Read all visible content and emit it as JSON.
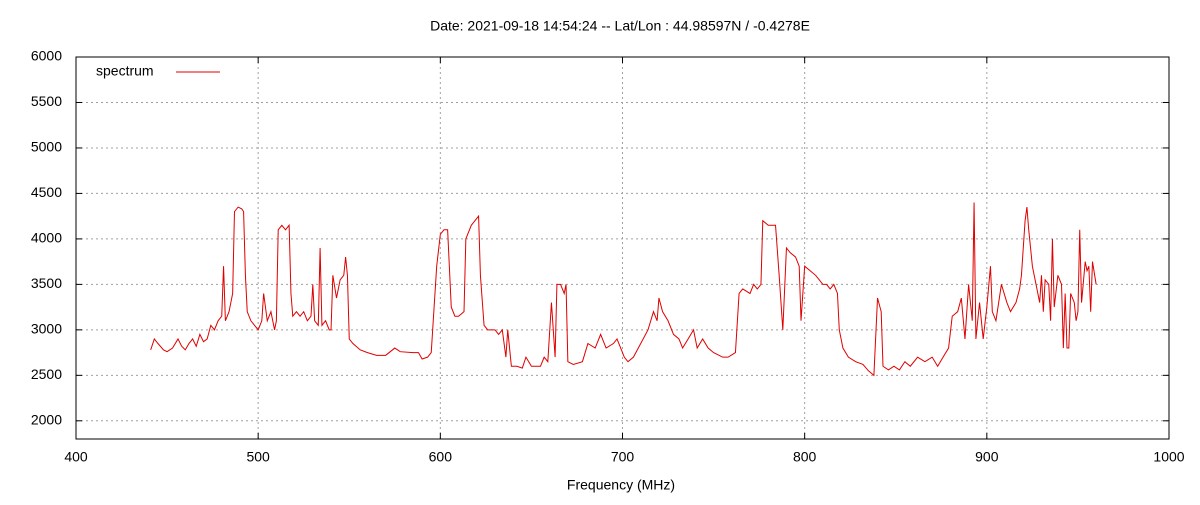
{
  "chart_data": {
    "type": "line",
    "title": "Date: 2021-09-18 14:54:24  --  Lat/Lon : 44.98597N / -0.4278E",
    "x_label": "Frequency (MHz)",
    "xlim": [
      400,
      1000
    ],
    "xticks": [
      400,
      500,
      600,
      700,
      800,
      900,
      1000
    ],
    "ylim": [
      1800,
      6000
    ],
    "yticks": [
      2000,
      2500,
      3000,
      3500,
      4000,
      4500,
      5000,
      5500,
      6000
    ],
    "grid": true,
    "legend": "top-left",
    "series": [
      {
        "name": "spectrum",
        "color": "#e00000",
        "x": [
          441,
          443,
          445,
          448,
          450,
          453,
          456,
          458,
          460,
          462,
          464,
          466,
          468,
          470,
          472,
          474,
          476,
          478,
          480,
          481,
          482,
          484,
          486,
          487,
          489,
          491,
          492,
          493,
          494,
          496,
          498,
          500,
          502,
          503,
          505,
          507,
          509,
          510,
          511,
          513,
          515,
          517,
          518,
          519,
          521,
          523,
          525,
          527,
          529,
          530,
          531,
          533,
          534,
          535,
          537,
          539,
          540,
          541,
          543,
          545,
          547,
          548,
          549,
          550,
          552,
          556,
          560,
          565,
          570,
          575,
          578,
          585,
          588,
          590,
          593,
          595,
          598,
          600,
          602,
          604,
          606,
          608,
          610,
          613,
          614,
          617,
          619,
          621,
          622,
          624,
          626,
          630,
          632,
          634,
          636,
          637,
          639,
          642,
          645,
          647,
          650,
          655,
          657,
          659,
          661,
          663,
          664,
          666,
          668,
          669,
          670,
          673,
          678,
          681,
          685,
          688,
          691,
          695,
          697,
          699,
          701,
          703,
          706,
          710,
          714,
          717,
          719,
          720,
          722,
          725,
          728,
          731,
          733,
          736,
          739,
          741,
          744,
          747,
          750,
          755,
          758,
          762,
          764,
          766,
          770,
          772,
          774,
          776,
          777,
          780,
          784,
          786,
          788,
          790,
          792,
          795,
          797,
          798,
          800,
          803,
          806,
          808,
          810,
          812,
          814,
          816,
          818,
          819,
          821,
          824,
          828,
          832,
          835,
          838,
          840,
          842,
          843,
          846,
          849,
          852,
          855,
          858,
          862,
          866,
          870,
          873,
          876,
          879,
          881,
          884,
          886,
          888,
          890,
          892,
          893,
          894,
          896,
          898,
          900,
          902,
          903,
          905,
          908,
          911,
          913,
          916,
          918,
          919,
          921,
          922,
          923,
          925,
          927,
          929,
          930,
          931,
          932,
          934,
          935,
          936,
          937,
          939,
          941,
          942,
          943,
          944,
          945,
          946,
          948,
          949,
          950,
          951,
          952,
          954,
          955,
          956,
          957,
          958,
          960
        ],
        "values": [
          2780,
          2900,
          2850,
          2780,
          2760,
          2800,
          2900,
          2820,
          2780,
          2850,
          2900,
          2820,
          2950,
          2870,
          2900,
          3050,
          3000,
          3100,
          3150,
          3700,
          3100,
          3200,
          3400,
          4300,
          4350,
          4330,
          4300,
          3600,
          3200,
          3100,
          3050,
          3000,
          3100,
          3400,
          3100,
          3200,
          3000,
          3100,
          4100,
          4150,
          4100,
          4150,
          3400,
          3150,
          3200,
          3150,
          3200,
          3100,
          3150,
          3500,
          3100,
          3050,
          3900,
          3050,
          3100,
          3000,
          3000,
          3600,
          3350,
          3550,
          3600,
          3800,
          3600,
          2900,
          2850,
          2780,
          2750,
          2720,
          2720,
          2800,
          2760,
          2750,
          2750,
          2680,
          2700,
          2750,
          3700,
          4050,
          4100,
          4100,
          3250,
          3150,
          3150,
          3200,
          4000,
          4150,
          4200,
          4250,
          3600,
          3050,
          3000,
          3000,
          2950,
          3000,
          2700,
          3000,
          2600,
          2600,
          2580,
          2700,
          2600,
          2600,
          2700,
          2650,
          3300,
          2700,
          3500,
          3500,
          3400,
          3500,
          2650,
          2620,
          2650,
          2850,
          2800,
          2950,
          2800,
          2850,
          2900,
          2800,
          2700,
          2650,
          2700,
          2850,
          3000,
          3200,
          3100,
          3350,
          3200,
          3100,
          2950,
          2900,
          2800,
          2900,
          3000,
          2800,
          2900,
          2800,
          2750,
          2700,
          2700,
          2750,
          3400,
          3450,
          3400,
          3500,
          3450,
          3500,
          4200,
          4150,
          4150,
          3600,
          3000,
          3900,
          3850,
          3800,
          3700,
          3100,
          3700,
          3650,
          3600,
          3550,
          3500,
          3500,
          3450,
          3500,
          3400,
          3000,
          2800,
          2700,
          2650,
          2620,
          2550,
          2500,
          3350,
          3200,
          2600,
          2560,
          2600,
          2560,
          2650,
          2600,
          2700,
          2650,
          2700,
          2600,
          2700,
          2800,
          3150,
          3200,
          3350,
          2900,
          3500,
          3100,
          4400,
          2900,
          3300,
          2900,
          3250,
          3700,
          3200,
          3100,
          3500,
          3300,
          3200,
          3300,
          3450,
          3600,
          4200,
          4350,
          4100,
          3700,
          3500,
          3300,
          3600,
          3200,
          3550,
          3500,
          3100,
          4000,
          3250,
          3600,
          3500,
          2800,
          3400,
          2800,
          2800,
          3400,
          3300,
          3100,
          3200,
          4100,
          3300,
          3750,
          3650,
          3700,
          3200,
          3750,
          3500
        ]
      }
    ]
  }
}
